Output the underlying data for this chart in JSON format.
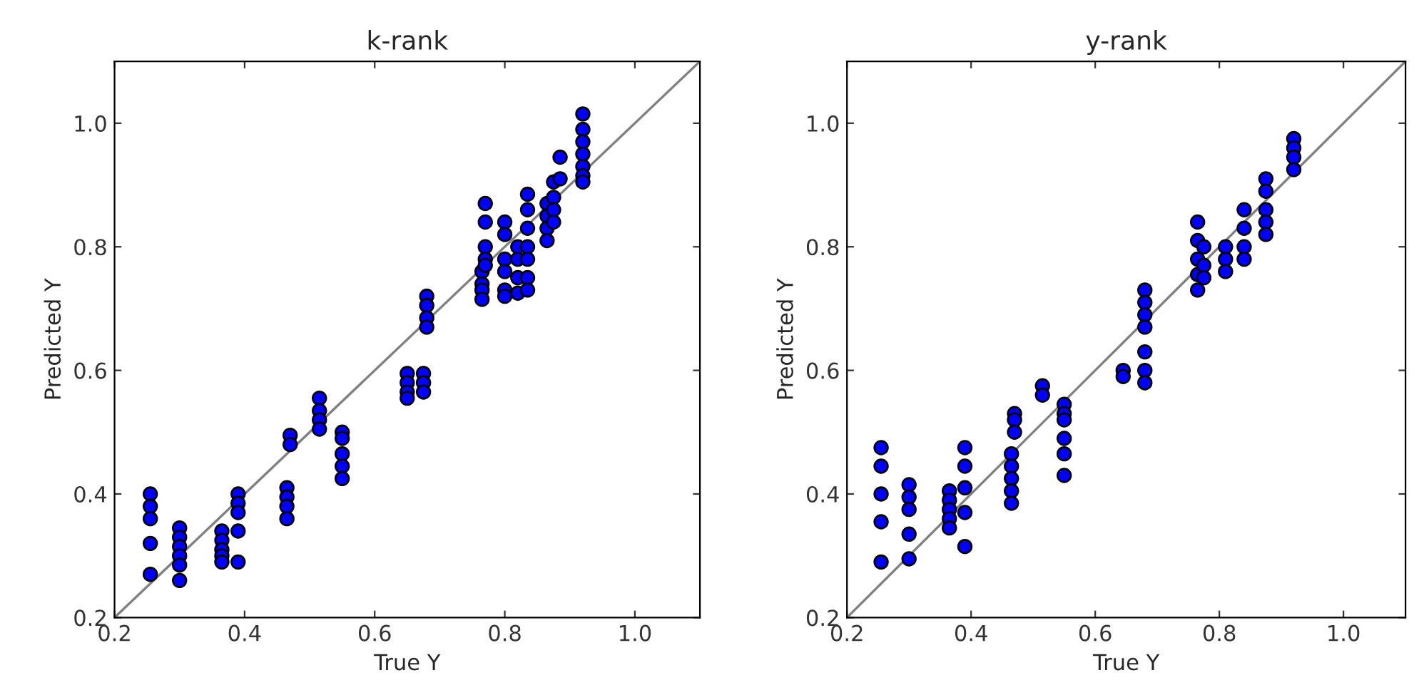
{
  "chart_data": [
    {
      "type": "scatter",
      "title": "k-rank",
      "xlabel": "True Y",
      "ylabel": "Predicted Y",
      "xlim": [
        0.2,
        1.1
      ],
      "ylim": [
        0.2,
        1.1
      ],
      "xticks": [
        0.2,
        0.4,
        0.6,
        0.8,
        {
          "value": 1.0,
          "label": "1.0"
        }
      ],
      "yticks": [
        0.2,
        0.4,
        0.6,
        0.8,
        {
          "value": 1.0,
          "label": "1.0"
        }
      ],
      "grid": false,
      "marker": "circle",
      "series": [
        {
          "color": "#0000ff",
          "x": [
            0.255,
            0.255,
            0.255,
            0.255,
            0.255,
            0.3,
            0.3,
            0.3,
            0.3,
            0.3,
            0.3,
            0.365,
            0.365,
            0.365,
            0.365,
            0.365,
            0.39,
            0.39,
            0.39,
            0.39,
            0.39,
            0.465,
            0.465,
            0.465,
            0.465,
            0.47,
            0.47,
            0.515,
            0.515,
            0.515,
            0.515,
            0.55,
            0.55,
            0.55,
            0.55,
            0.55,
            0.65,
            0.65,
            0.65,
            0.65,
            0.675,
            0.675,
            0.675,
            0.68,
            0.68,
            0.68,
            0.68,
            0.765,
            0.765,
            0.765,
            0.765,
            0.77,
            0.77,
            0.77,
            0.77,
            0.77,
            0.8,
            0.8,
            0.8,
            0.8,
            0.8,
            0.8,
            0.82,
            0.82,
            0.82,
            0.82,
            0.835,
            0.835,
            0.835,
            0.835,
            0.835,
            0.835,
            0.835,
            0.865,
            0.865,
            0.865,
            0.865,
            0.875,
            0.875,
            0.875,
            0.875,
            0.885,
            0.885,
            0.92,
            0.92,
            0.92,
            0.92,
            0.92,
            0.92,
            0.92
          ],
          "values": [
            0.4,
            0.38,
            0.36,
            0.32,
            0.27,
            0.345,
            0.33,
            0.315,
            0.3,
            0.285,
            0.26,
            0.34,
            0.325,
            0.31,
            0.3,
            0.29,
            0.4,
            0.385,
            0.37,
            0.34,
            0.29,
            0.41,
            0.395,
            0.38,
            0.36,
            0.495,
            0.48,
            0.555,
            0.535,
            0.52,
            0.505,
            0.5,
            0.49,
            0.465,
            0.445,
            0.425,
            0.595,
            0.58,
            0.565,
            0.555,
            0.595,
            0.58,
            0.565,
            0.72,
            0.705,
            0.685,
            0.67,
            0.76,
            0.74,
            0.73,
            0.715,
            0.87,
            0.84,
            0.8,
            0.78,
            0.77,
            0.84,
            0.82,
            0.78,
            0.76,
            0.73,
            0.72,
            0.8,
            0.78,
            0.75,
            0.725,
            0.885,
            0.86,
            0.83,
            0.8,
            0.78,
            0.75,
            0.73,
            0.87,
            0.85,
            0.83,
            0.81,
            0.905,
            0.88,
            0.86,
            0.84,
            0.945,
            0.91,
            1.015,
            0.99,
            0.97,
            0.95,
            0.93,
            0.915,
            0.905
          ]
        },
        {
          "type": "line",
          "color": "#808080",
          "marker": "none",
          "x": [
            0.2,
            1.1
          ],
          "values": [
            0.2,
            1.1
          ]
        }
      ]
    },
    {
      "type": "scatter",
      "title": "y-rank",
      "xlabel": "True Y",
      "ylabel": "Predicted Y",
      "xlim": [
        0.2,
        1.1
      ],
      "ylim": [
        0.2,
        1.1
      ],
      "xticks": [
        0.2,
        0.4,
        0.6,
        0.8,
        {
          "value": 1.0,
          "label": "1.0"
        }
      ],
      "yticks": [
        0.2,
        0.4,
        0.6,
        0.8,
        {
          "value": 1.0,
          "label": "1.0"
        }
      ],
      "grid": false,
      "marker": "circle",
      "series": [
        {
          "color": "#0000ff",
          "x": [
            0.255,
            0.255,
            0.255,
            0.255,
            0.255,
            0.3,
            0.3,
            0.3,
            0.3,
            0.3,
            0.365,
            0.365,
            0.365,
            0.365,
            0.365,
            0.39,
            0.39,
            0.39,
            0.39,
            0.39,
            0.465,
            0.465,
            0.465,
            0.465,
            0.465,
            0.47,
            0.47,
            0.47,
            0.515,
            0.515,
            0.55,
            0.55,
            0.55,
            0.55,
            0.55,
            0.55,
            0.645,
            0.645,
            0.68,
            0.68,
            0.68,
            0.68,
            0.68,
            0.68,
            0.68,
            0.765,
            0.765,
            0.765,
            0.765,
            0.765,
            0.775,
            0.775,
            0.775,
            0.81,
            0.81,
            0.81,
            0.84,
            0.84,
            0.84,
            0.84,
            0.875,
            0.875,
            0.875,
            0.875,
            0.875,
            0.92,
            0.92,
            0.92,
            0.92
          ],
          "values": [
            0.475,
            0.445,
            0.4,
            0.355,
            0.29,
            0.415,
            0.395,
            0.375,
            0.335,
            0.295,
            0.405,
            0.39,
            0.375,
            0.36,
            0.345,
            0.475,
            0.445,
            0.41,
            0.37,
            0.315,
            0.465,
            0.445,
            0.425,
            0.405,
            0.385,
            0.53,
            0.52,
            0.5,
            0.575,
            0.56,
            0.545,
            0.53,
            0.52,
            0.49,
            0.465,
            0.43,
            0.6,
            0.59,
            0.73,
            0.71,
            0.69,
            0.67,
            0.63,
            0.6,
            0.58,
            0.84,
            0.81,
            0.78,
            0.755,
            0.73,
            0.8,
            0.77,
            0.75,
            0.8,
            0.78,
            0.76,
            0.86,
            0.83,
            0.8,
            0.78,
            0.91,
            0.89,
            0.86,
            0.84,
            0.82,
            0.975,
            0.96,
            0.945,
            0.925
          ]
        },
        {
          "type": "line",
          "color": "#808080",
          "marker": "none",
          "x": [
            0.2,
            1.1
          ],
          "values": [
            0.2,
            1.1
          ]
        }
      ]
    }
  ]
}
